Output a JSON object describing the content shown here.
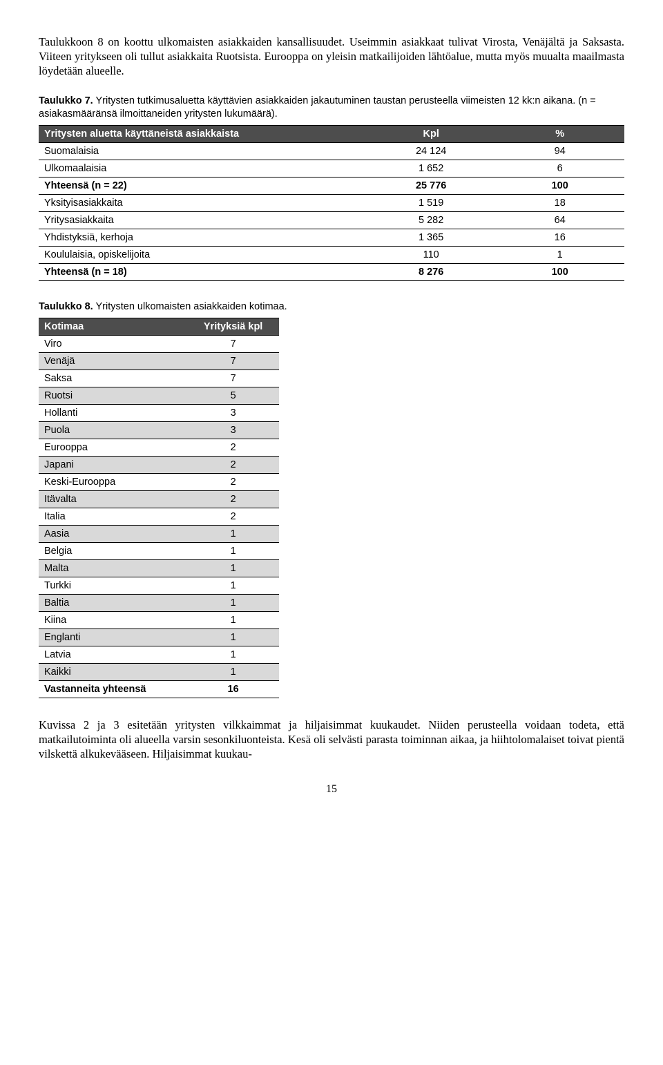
{
  "para_intro": "Taulukkoon 8 on koottu ulkomaisten asiakkaiden kansallisuudet. Useimmin asiakkaat tulivat Virosta, Venäjältä ja Saksasta. Viiteen yritykseen oli tullut asiakkaita Ruotsista. Eurooppa on yleisin matkailijoiden lähtöalue, mutta myös muualta maailmasta löydetään alueelle.",
  "table7": {
    "caption_bold": "Taulukko 7.",
    "caption_rest": " Yritysten tutkimusaluetta käyttävien asiakkaiden jakautuminen taustan perusteella viimeisten 12 kk:n aikana. (n = asiakasmääränsä ilmoittaneiden yritysten lukumäärä).",
    "headers": [
      "Yritysten aluetta käyttäneistä asiakkaista",
      "Kpl",
      "%"
    ],
    "rows": [
      {
        "label": "Suomalaisia",
        "kpl": "24 124",
        "pct": "94",
        "bold": false
      },
      {
        "label": "Ulkomaalaisia",
        "kpl": "1 652",
        "pct": "6",
        "bold": false
      },
      {
        "label": "Yhteensä (n = 22)",
        "kpl": "25 776",
        "pct": "100",
        "bold": true
      },
      {
        "label": "Yksityisasiakkaita",
        "kpl": "1 519",
        "pct": "18",
        "bold": false
      },
      {
        "label": "Yritysasiakkaita",
        "kpl": "5 282",
        "pct": "64",
        "bold": false
      },
      {
        "label": "Yhdistyksiä, kerhoja",
        "kpl": "1 365",
        "pct": "16",
        "bold": false
      },
      {
        "label": "Koululaisia, opiskelijoita",
        "kpl": "110",
        "pct": "1",
        "bold": false
      },
      {
        "label": "Yhteensä (n = 18)",
        "kpl": "8 276",
        "pct": "100",
        "bold": true
      }
    ]
  },
  "table8": {
    "caption_bold": "Taulukko 8.",
    "caption_rest": " Yritysten ulkomaisten asiakkaiden kotimaa.",
    "headers": [
      "Kotimaa",
      "Yrityksiä kpl"
    ],
    "rows": [
      {
        "label": "Viro",
        "val": "7",
        "shade": false,
        "bold": false
      },
      {
        "label": "Venäjä",
        "val": "7",
        "shade": true,
        "bold": false
      },
      {
        "label": "Saksa",
        "val": "7",
        "shade": false,
        "bold": false
      },
      {
        "label": "Ruotsi",
        "val": "5",
        "shade": true,
        "bold": false
      },
      {
        "label": "Hollanti",
        "val": "3",
        "shade": false,
        "bold": false
      },
      {
        "label": "Puola",
        "val": "3",
        "shade": true,
        "bold": false
      },
      {
        "label": "Eurooppa",
        "val": "2",
        "shade": false,
        "bold": false
      },
      {
        "label": "Japani",
        "val": "2",
        "shade": true,
        "bold": false
      },
      {
        "label": "Keski-Eurooppa",
        "val": "2",
        "shade": false,
        "bold": false
      },
      {
        "label": "Itävalta",
        "val": "2",
        "shade": true,
        "bold": false
      },
      {
        "label": "Italia",
        "val": "2",
        "shade": false,
        "bold": false
      },
      {
        "label": "Aasia",
        "val": "1",
        "shade": true,
        "bold": false
      },
      {
        "label": "Belgia",
        "val": "1",
        "shade": false,
        "bold": false
      },
      {
        "label": "Malta",
        "val": "1",
        "shade": true,
        "bold": false
      },
      {
        "label": "Turkki",
        "val": "1",
        "shade": false,
        "bold": false
      },
      {
        "label": "Baltia",
        "val": "1",
        "shade": true,
        "bold": false
      },
      {
        "label": "Kiina",
        "val": "1",
        "shade": false,
        "bold": false
      },
      {
        "label": "Englanti",
        "val": "1",
        "shade": true,
        "bold": false
      },
      {
        "label": "Latvia",
        "val": "1",
        "shade": false,
        "bold": false
      },
      {
        "label": "Kaikki",
        "val": "1",
        "shade": true,
        "bold": false
      },
      {
        "label": "Vastanneita yhteensä",
        "val": "16",
        "shade": false,
        "bold": true
      }
    ]
  },
  "para_outro": "Kuvissa 2 ja 3 esitetään yritysten vilkkaimmat ja hiljaisimmat kuukaudet. Niiden perusteella voidaan todeta, että matkailutoiminta oli alueella varsin sesonkiluonteista. Kesä oli selvästi parasta toiminnan aikaa, ja hiihtolomalaiset toivat pientä vilskettä alkukevääseen. Hiljaisimmat kuukau-",
  "page_number": "15"
}
